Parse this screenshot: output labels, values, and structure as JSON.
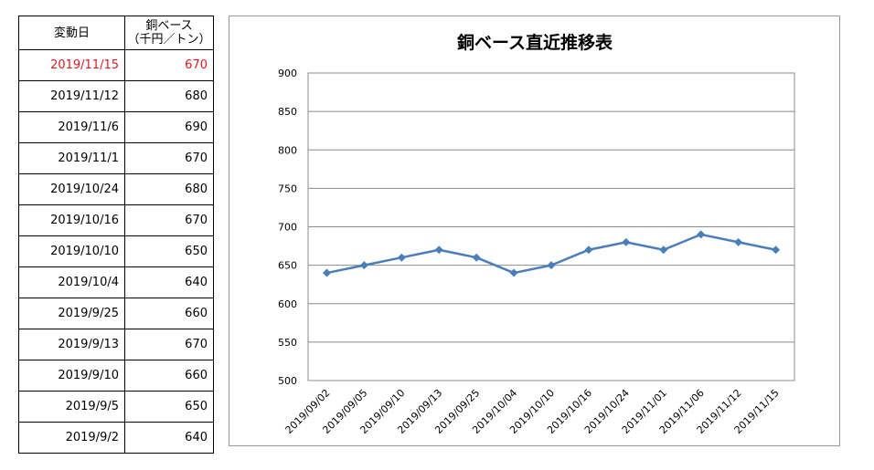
{
  "table": {
    "header_date": "変動日",
    "header_value_line1": "銅ベース",
    "header_value_line2": "（千円／トン）",
    "rows": [
      {
        "date": "2019/11/15",
        "value": "670",
        "highlight": true
      },
      {
        "date": "2019/11/12",
        "value": "680",
        "highlight": false
      },
      {
        "date": "2019/11/6",
        "value": "690",
        "highlight": false
      },
      {
        "date": "2019/11/1",
        "value": "670",
        "highlight": false
      },
      {
        "date": "2019/10/24",
        "value": "680",
        "highlight": false
      },
      {
        "date": "2019/10/16",
        "value": "670",
        "highlight": false
      },
      {
        "date": "2019/10/10",
        "value": "650",
        "highlight": false
      },
      {
        "date": "2019/10/4",
        "value": "640",
        "highlight": false
      },
      {
        "date": "2019/9/25",
        "value": "660",
        "highlight": false
      },
      {
        "date": "2019/9/13",
        "value": "670",
        "highlight": false
      },
      {
        "date": "2019/9/10",
        "value": "660",
        "highlight": false
      },
      {
        "date": "2019/9/5",
        "value": "650",
        "highlight": false
      },
      {
        "date": "2019/9/2",
        "value": "640",
        "highlight": false
      }
    ],
    "highlight_color": "#e0191f"
  },
  "chart_data": {
    "type": "line",
    "title": "銅ベース直近推移表",
    "xlabel": "",
    "ylabel": "",
    "categories": [
      "2019/09/02",
      "2019/09/05",
      "2019/09/10",
      "2019/09/13",
      "2019/09/25",
      "2019/10/04",
      "2019/10/10",
      "2019/10/16",
      "2019/10/24",
      "2019/11/01",
      "2019/11/06",
      "2019/11/12",
      "2019/11/15"
    ],
    "series": [
      {
        "values": [
          640,
          650,
          660,
          670,
          660,
          640,
          650,
          670,
          680,
          670,
          690,
          680,
          670
        ]
      }
    ],
    "ylim": [
      500,
      900
    ],
    "yticks": [
      500,
      550,
      600,
      650,
      700,
      750,
      800,
      850,
      900
    ],
    "grid": true,
    "legend": "none",
    "line_color": "#4a7ebb",
    "marker": "diamond"
  }
}
